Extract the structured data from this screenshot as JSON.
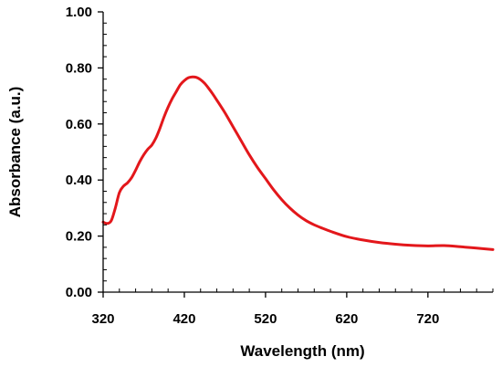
{
  "chart_data": {
    "type": "line",
    "title": "",
    "xlabel": "Wavelength (nm)",
    "ylabel": "Absorbance (a.u.)",
    "xlim": [
      320,
      800
    ],
    "ylim": [
      0.0,
      1.0
    ],
    "x_ticks": [
      320,
      420,
      520,
      620,
      720
    ],
    "x_tick_labels": [
      "320",
      "420",
      "520",
      "620",
      "720"
    ],
    "y_ticks": [
      0.0,
      0.2,
      0.4,
      0.6,
      0.8,
      1.0
    ],
    "y_tick_labels": [
      "0.00",
      "0.20",
      "0.40",
      "0.60",
      "0.80",
      "1.00"
    ],
    "grid": false,
    "legend": "none",
    "series": [
      {
        "color": "#e3171b",
        "x": [
          320,
          325,
          330,
          335,
          340,
          345,
          350,
          355,
          360,
          365,
          370,
          375,
          380,
          385,
          390,
          395,
          400,
          405,
          410,
          415,
          420,
          425,
          430,
          435,
          440,
          445,
          450,
          455,
          460,
          470,
          480,
          490,
          500,
          510,
          520,
          530,
          540,
          550,
          560,
          570,
          580,
          590,
          600,
          620,
          640,
          660,
          680,
          700,
          720,
          740,
          760,
          780,
          800
        ],
        "y": [
          0.25,
          0.245,
          0.255,
          0.3,
          0.355,
          0.378,
          0.39,
          0.408,
          0.435,
          0.465,
          0.49,
          0.51,
          0.525,
          0.55,
          0.585,
          0.625,
          0.66,
          0.69,
          0.715,
          0.74,
          0.755,
          0.765,
          0.768,
          0.766,
          0.758,
          0.745,
          0.727,
          0.707,
          0.685,
          0.64,
          0.59,
          0.54,
          0.49,
          0.445,
          0.405,
          0.365,
          0.33,
          0.3,
          0.275,
          0.255,
          0.24,
          0.228,
          0.217,
          0.198,
          0.186,
          0.177,
          0.171,
          0.167,
          0.165,
          0.166,
          0.162,
          0.157,
          0.152
        ]
      }
    ]
  }
}
